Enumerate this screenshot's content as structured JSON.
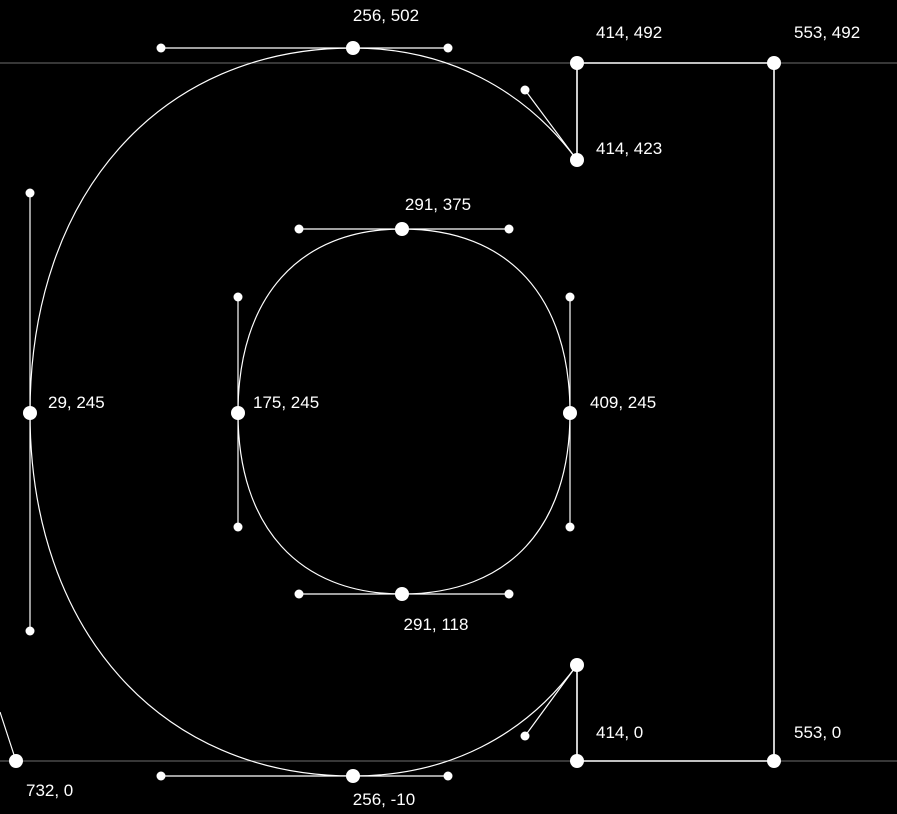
{
  "colors": {
    "background": "#000000",
    "stroke": "#ffffff",
    "guide": "#7a7a7a"
  },
  "guides": {
    "ascender": "y 492",
    "baseline": "y 0"
  },
  "nodes": [
    {
      "id": "top-outer",
      "label": "256, 502"
    },
    {
      "id": "top-right",
      "label": "414, 492"
    },
    {
      "id": "far-right-top",
      "label": "553, 492"
    },
    {
      "id": "terminal-top",
      "label": "414, 423"
    },
    {
      "id": "inner-top",
      "label": "291, 375"
    },
    {
      "id": "outer-left",
      "label": "29, 245"
    },
    {
      "id": "inner-left",
      "label": "175, 245"
    },
    {
      "id": "inner-right",
      "label": "409, 245"
    },
    {
      "id": "inner-bottom",
      "label": "291, 118"
    },
    {
      "id": "baseline-right",
      "label": "414, 0"
    },
    {
      "id": "far-right-bottom",
      "label": "553, 0"
    },
    {
      "id": "bottom-outer",
      "label": "256, -10"
    },
    {
      "id": "prev-glyph",
      "label": "732, 0"
    }
  ]
}
